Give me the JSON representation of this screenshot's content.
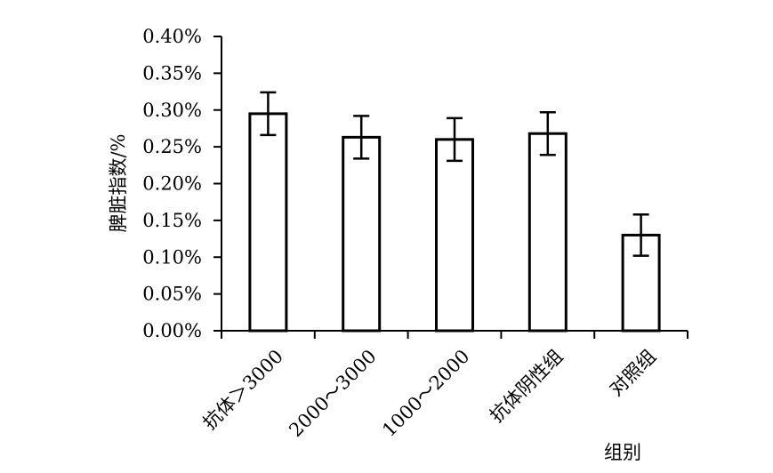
{
  "chart_data": {
    "type": "bar",
    "title": "",
    "xlabel": "组别",
    "ylabel": "脾脏指数/%",
    "categories": [
      "抗体＞3000",
      "2000～3000",
      "1000～2000",
      "抗体阴性组",
      "对照组"
    ],
    "values": [
      0.295,
      0.263,
      0.26,
      0.268,
      0.13
    ],
    "error": [
      0.029,
      0.029,
      0.029,
      0.029,
      0.028
    ],
    "ylim": [
      0,
      0.4
    ],
    "yticks": [
      0,
      0.05,
      0.1,
      0.15,
      0.2,
      0.25,
      0.3,
      0.35,
      0.4
    ],
    "ytick_labels": [
      "0.00%",
      "0.05%",
      "0.10%",
      "0.15%",
      "0.20%",
      "0.25%",
      "0.30%",
      "0.35%",
      "0.40%"
    ],
    "grid": false,
    "legend": "none",
    "colors": {
      "bar_fill": "#ffffff",
      "bar_stroke": "#000000",
      "axis": "#000000"
    }
  }
}
